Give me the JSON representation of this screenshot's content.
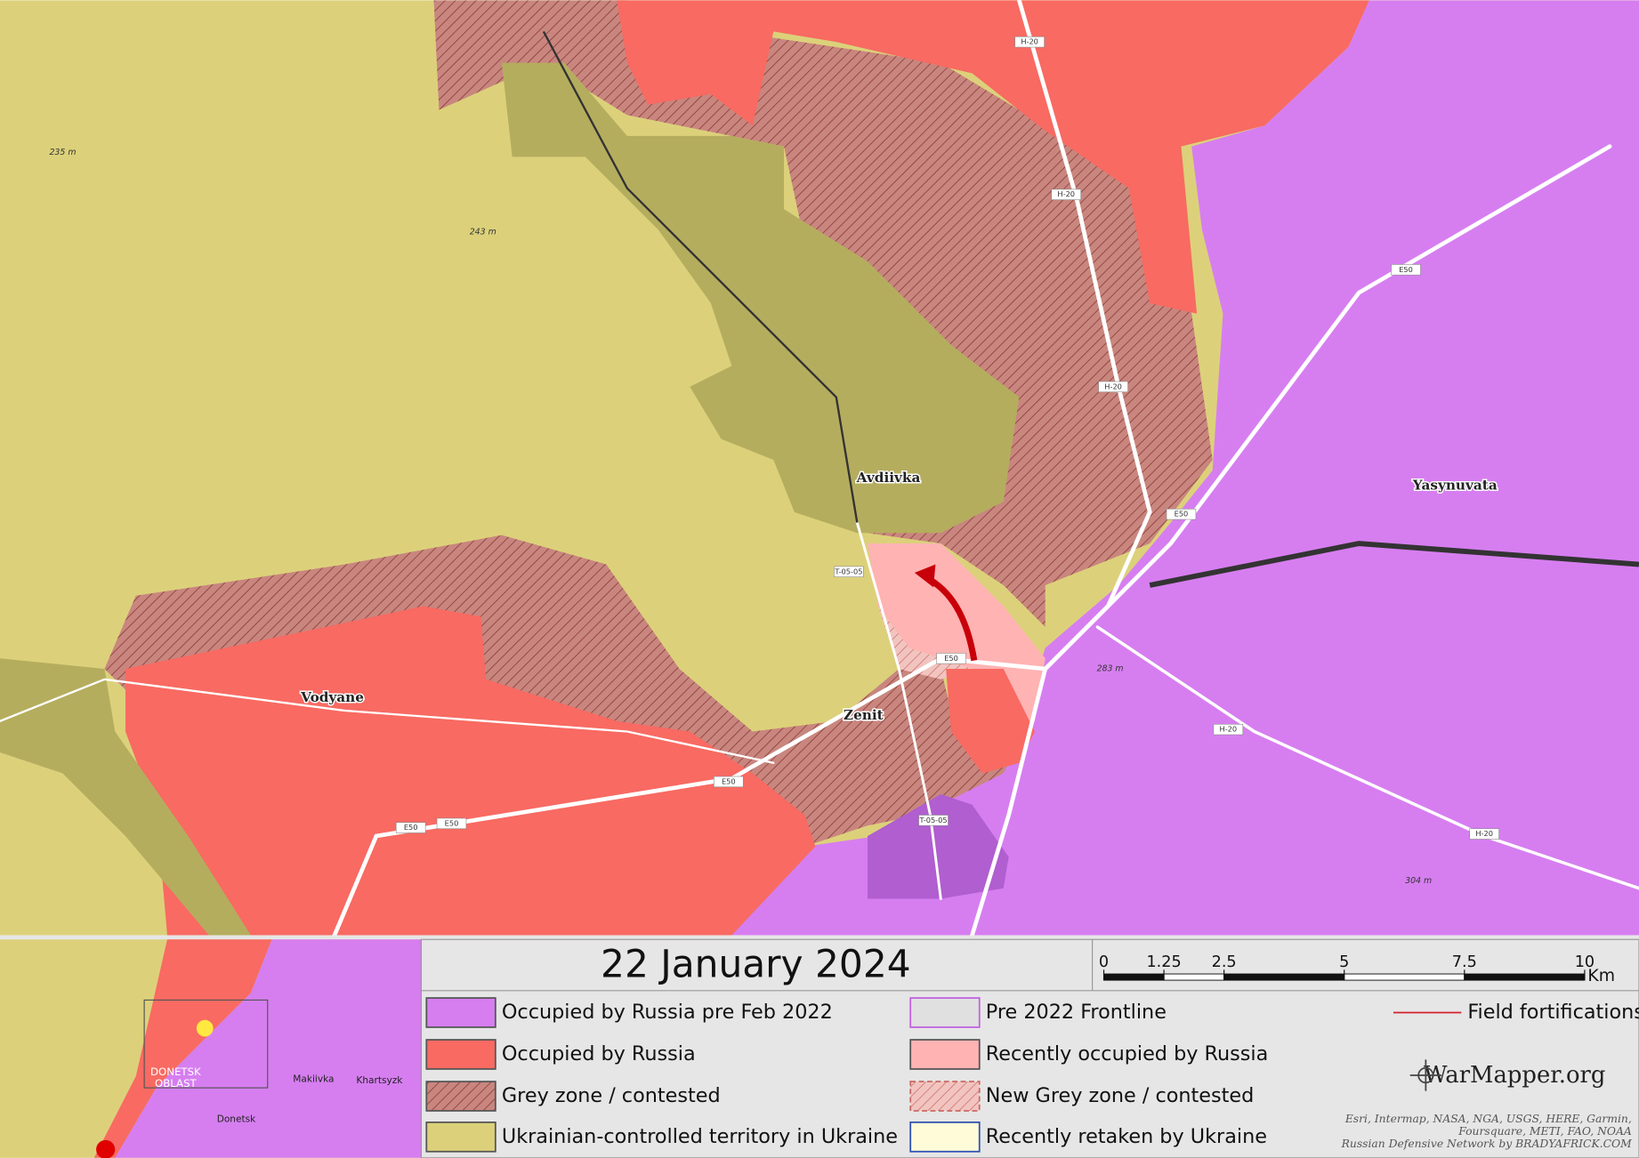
{
  "date": "22 January 2024",
  "scale_bar": {
    "ticks": [
      0,
      1.25,
      2.5,
      5,
      7.5,
      10
    ],
    "unit": "Km"
  },
  "legend": [
    {
      "label": "Occupied by Russia pre Feb 2022",
      "color": "#d67ef0"
    },
    {
      "label": "Occupied by Russia",
      "color": "#f86a62"
    },
    {
      "label": "Grey zone / contested",
      "color": "#c8867f"
    },
    {
      "label": "Ukrainian-controlled territory in Ukraine",
      "color": "#dcd17a"
    },
    {
      "label": "Pre 2022 Frontline",
      "color": "#e0e0e0"
    },
    {
      "label": "Recently occupied by Russia",
      "color": "#ffb3b3"
    },
    {
      "label": "New Grey zone / contested",
      "color": "#f2c4c0"
    },
    {
      "label": "Recently retaken by Ukraine",
      "color": "#fffbd8"
    },
    {
      "label": "Field fortifications",
      "color": "#d0202a"
    }
  ],
  "places": [
    "Avdiivka",
    "Vodyane",
    "Zenit",
    "Yasynuvata"
  ],
  "elevations": [
    "235 m",
    "243 m",
    "283 m",
    "304 m"
  ],
  "road_labels": [
    "H-20",
    "H-20",
    "H-20",
    "H-20",
    "H-20",
    "E50",
    "E50",
    "E50",
    "E50",
    "E50",
    "E50",
    "T-05-05",
    "T-05-05"
  ],
  "inset_labels": [
    "DONETSK",
    "OBLAST",
    "Makiivka",
    "Khartsyzk",
    "Donetsk"
  ],
  "brand": "WarMapper.org",
  "credits": [
    "Esri, Intermap, NASA, NGA, USGS, HERE, Garmin,",
    "Foursquare, METI, FAO, NOAA",
    "Russian Defensive Network by BRADYAFRICK.COM"
  ]
}
